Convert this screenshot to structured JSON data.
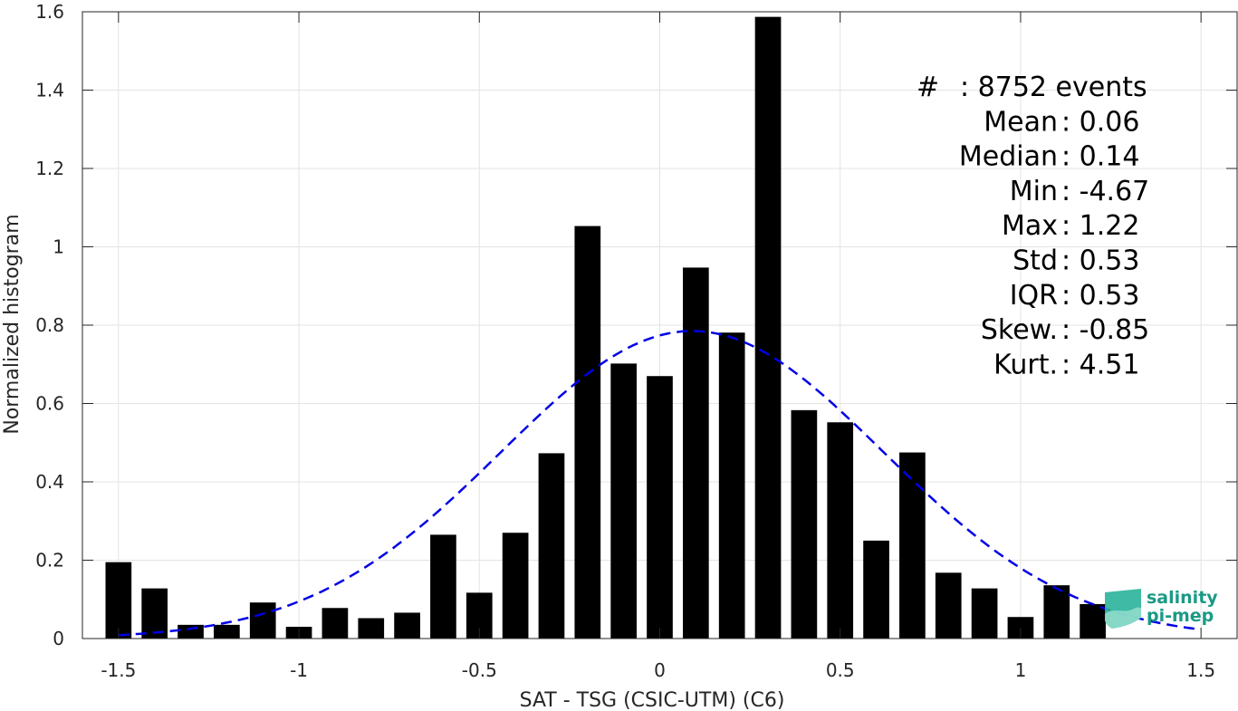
{
  "chart_data": {
    "type": "bar",
    "xlabel": "SAT - TSG (CSIC-UTM) (C6)",
    "ylabel": "Normalized histogram",
    "xlim": [
      -1.6,
      1.6
    ],
    "ylim": [
      0,
      1.6
    ],
    "grid": true,
    "x_ticks": [
      -1.5,
      -1,
      -0.5,
      0,
      0.5,
      1,
      1.5
    ],
    "x_tick_labels": [
      "-1.5",
      "-1",
      "-0.5",
      "0",
      "0.5",
      "1",
      "1.5"
    ],
    "y_ticks": [
      0,
      0.2,
      0.4,
      0.6,
      0.8,
      1,
      1.2,
      1.4,
      1.6
    ],
    "y_tick_labels": [
      "0",
      "0.2",
      "0.4",
      "0.6",
      "0.8",
      "1",
      "1.2",
      "1.4",
      "1.6"
    ],
    "bin_width": 0.1,
    "x": [
      -1.5,
      -1.4,
      -1.3,
      -1.2,
      -1.1,
      -1.0,
      -0.9,
      -0.8,
      -0.7,
      -0.6,
      -0.5,
      -0.4,
      -0.3,
      -0.2,
      -0.1,
      0.0,
      0.1,
      0.2,
      0.3,
      0.4,
      0.5,
      0.6,
      0.7,
      0.8,
      0.9,
      1.0,
      1.1,
      1.2
    ],
    "values": [
      0.195,
      0.128,
      0.035,
      0.035,
      0.092,
      0.03,
      0.078,
      0.052,
      0.066,
      0.265,
      0.117,
      0.27,
      0.473,
      1.053,
      0.702,
      0.67,
      0.947,
      0.781,
      1.587,
      0.583,
      0.552,
      0.25,
      0.475,
      0.168,
      0.128,
      0.055,
      0.136,
      0.088
    ],
    "bar_color": "#000000",
    "fit_curve": {
      "type": "gaussian",
      "style": "dashed",
      "color": "#0000e6",
      "x_range": [
        -1.5,
        1.5
      ]
    },
    "annotations": [
      {
        "label": "#  ",
        "value": ": 8752 events"
      },
      {
        "label": "Mean ",
        "value": ": 0.06"
      },
      {
        "label": "Median ",
        "value": ": 0.14"
      },
      {
        "label": "Min ",
        "value": ": -4.67"
      },
      {
        "label": "Max ",
        "value": ": 1.22"
      },
      {
        "label": "Std ",
        "value": ": 0.53"
      },
      {
        "label": "IQR ",
        "value": ": 0.53"
      },
      {
        "label": "Skew. ",
        "value": ": -0.85"
      },
      {
        "label": "Kurt. ",
        "value": ": 4.51"
      }
    ]
  },
  "logo": {
    "line1": "salinity",
    "line2": "pi-mep",
    "text_color": "#1a9a86",
    "icon_color": "#2ab39a"
  }
}
